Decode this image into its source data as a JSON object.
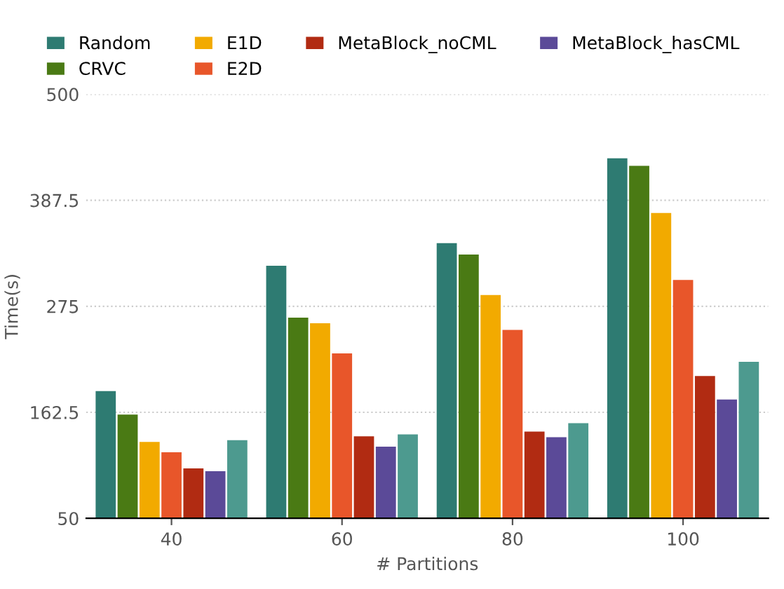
{
  "chart_data": {
    "type": "bar",
    "xlabel": "# Partitions",
    "ylabel": "Time(s)",
    "categories": [
      "40",
      "60",
      "80",
      "100"
    ],
    "series": [
      {
        "name": "Random",
        "color": "#2e7b72",
        "values": [
          185,
          318,
          342,
          432
        ]
      },
      {
        "name": "CRVC",
        "color": "#4a7a14",
        "values": [
          160,
          263,
          330,
          424
        ]
      },
      {
        "name": "E1D",
        "color": "#f2aa00",
        "values": [
          131,
          257,
          287,
          374
        ]
      },
      {
        "name": "E2D",
        "color": "#e8562a",
        "values": [
          120,
          225,
          250,
          303
        ]
      },
      {
        "name": "MetaBlock_noCML",
        "color": "#b12b12",
        "values": [
          103,
          137,
          142,
          201
        ]
      },
      {
        "name": "MetaBlock_hasCML",
        "color": "#5b4a98",
        "values": [
          100,
          126,
          136,
          176
        ]
      },
      {
        "color": "#4d9a8f",
        "values": [
          133,
          139,
          151,
          216
        ]
      }
    ],
    "ylim": [
      50,
      500
    ],
    "yticks": [
      50,
      162.5,
      275,
      387.5,
      500
    ],
    "grid": "y",
    "legend": "top"
  }
}
